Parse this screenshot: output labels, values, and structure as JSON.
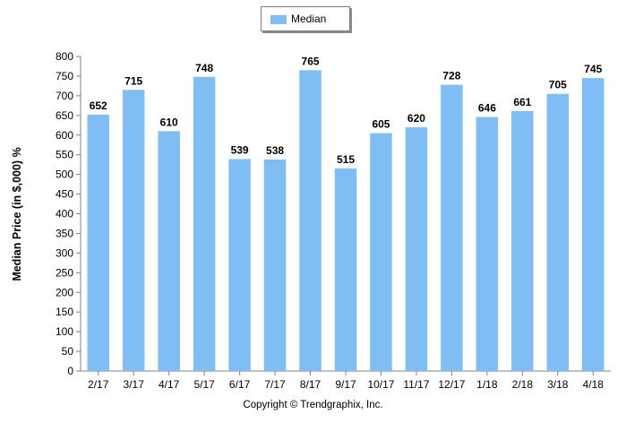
{
  "chart_data": {
    "type": "bar",
    "categories": [
      "2/17",
      "3/17",
      "4/17",
      "5/17",
      "6/17",
      "7/17",
      "8/17",
      "9/17",
      "10/17",
      "11/17",
      "12/17",
      "1/18",
      "2/18",
      "3/18",
      "4/18"
    ],
    "series": [
      {
        "name": "Median",
        "values": [
          652,
          715,
          610,
          748,
          539,
          538,
          765,
          515,
          605,
          620,
          728,
          646,
          661,
          705,
          745
        ],
        "color": "#7fbdf5"
      }
    ],
    "ylabel": "Median Price (in $,000) %",
    "xlabel": "",
    "ylim": [
      0,
      800
    ],
    "yticks": [
      0,
      50,
      100,
      150,
      200,
      250,
      300,
      350,
      400,
      450,
      500,
      550,
      600,
      650,
      700,
      750,
      800
    ],
    "grid": false,
    "legend_position": "top-center",
    "data_labels": true
  },
  "legend": {
    "label": "Median"
  },
  "footer": {
    "copyright": "Copyright © Trendgraphix, Inc."
  }
}
